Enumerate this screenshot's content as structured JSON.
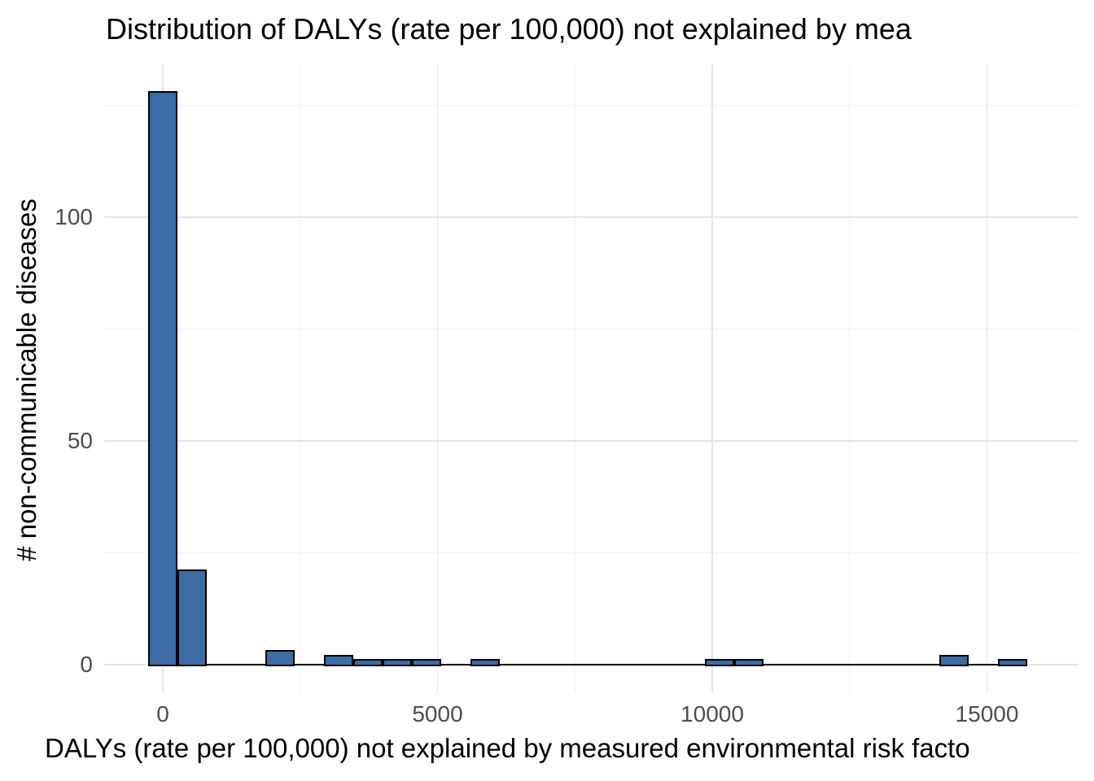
{
  "colors": {
    "bar_fill": "#3B6CA3",
    "bar_stroke": "#000000",
    "grid_major": "#E5E5E5",
    "grid_minor": "#F1F1F1",
    "tick_label": "#4D4D4D",
    "axis_text": "#000000",
    "background": "#FFFFFF"
  },
  "chart_data": {
    "type": "bar",
    "subtype": "histogram",
    "title": "Distribution of DALYs (rate per 100,000) not explained by mea",
    "xlabel": "DALYs (rate per 100,000) not explained by measured environmental risk facto",
    "ylabel": "# non-communicable diseases",
    "bin_start": -266.67,
    "bin_width": 533.33,
    "counts": [
      128,
      21,
      0,
      0,
      3,
      0,
      2,
      1,
      1,
      1,
      0,
      1,
      0,
      0,
      0,
      0,
      0,
      0,
      0,
      1,
      1,
      0,
      0,
      0,
      0,
      0,
      0,
      2,
      0,
      1
    ],
    "x_ticks": [
      0,
      5000,
      10000,
      15000
    ],
    "x_minor_ticks": [
      2500,
      7500,
      12500
    ],
    "y_ticks": [
      0,
      50,
      100
    ],
    "y_minor_ticks": [
      25,
      75,
      125
    ],
    "xlim": [
      -1066.7,
      16666.7
    ],
    "ylim": [
      -6.2,
      134
    ],
    "grid": true,
    "legend": false
  }
}
